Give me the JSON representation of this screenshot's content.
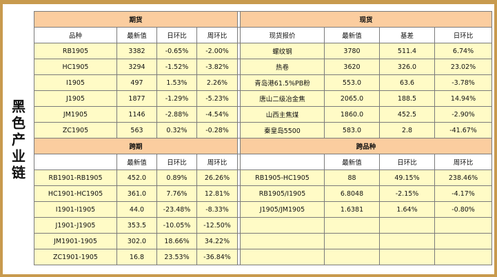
{
  "side_title": "黑色产业链",
  "futures": {
    "title": "期货",
    "headers": [
      "品种",
      "最新值",
      "日环比",
      "周环比"
    ],
    "rows": [
      [
        "RB1905",
        "3382",
        "-0.65%",
        "-2.00%"
      ],
      [
        "HC1905",
        "3294",
        "-1.52%",
        "-3.82%"
      ],
      [
        "I1905",
        "497",
        "1.53%",
        "2.26%"
      ],
      [
        "J1905",
        "1877",
        "-1.29%",
        "-5.23%"
      ],
      [
        "JM1905",
        "1146",
        "-2.88%",
        "-4.54%"
      ],
      [
        "ZC1905",
        "563",
        "0.32%",
        "-0.28%"
      ]
    ]
  },
  "spot": {
    "title": "现货",
    "headers": [
      "现货报价",
      "最新值",
      "基差",
      "日环比"
    ],
    "rows": [
      [
        "螺纹钢",
        "3780",
        "511.4",
        "6.74%"
      ],
      [
        "热卷",
        "3620",
        "326.0",
        "23.02%"
      ],
      [
        "青岛港61.5%PB粉",
        "553.0",
        "63.6",
        "-3.78%"
      ],
      [
        "唐山二级冶金焦",
        "2065.0",
        "188.5",
        "14.94%"
      ],
      [
        "山西主焦煤",
        "1860.0",
        "452.5",
        "-2.90%"
      ],
      [
        "秦皇岛5500",
        "583.0",
        "2.8",
        "-41.67%"
      ]
    ]
  },
  "spread": {
    "title": "跨期",
    "headers": [
      "",
      "最新值",
      "日环比",
      "周环比"
    ],
    "rows": [
      [
        "RB1901-RB1905",
        "452.0",
        "0.89%",
        "26.26%"
      ],
      [
        "HC1901-HC1905",
        "361.0",
        "7.76%",
        "12.81%"
      ],
      [
        "I1901-I1905",
        "44.0",
        "-23.48%",
        "-8.33%"
      ],
      [
        "J1901-J1905",
        "353.5",
        "-10.05%",
        "-12.50%"
      ],
      [
        "JM1901-1905",
        "302.0",
        "18.66%",
        "34.22%"
      ],
      [
        "ZC1901-1905",
        "16.8",
        "23.53%",
        "-36.84%"
      ]
    ]
  },
  "cross": {
    "title": "跨品种",
    "headers": [
      "",
      "最新值",
      "日环比",
      "周环比"
    ],
    "rows": [
      [
        "RB1905-HC1905",
        "88",
        "49.15%",
        "238.46%"
      ],
      [
        "RB1905/I1905",
        "6.8048",
        "-2.15%",
        "-4.17%"
      ],
      [
        "J1905/JM1905",
        "1.6381",
        "1.64%",
        "-0.80%"
      ],
      [
        "",
        "",
        "",
        ""
      ],
      [
        "",
        "",
        "",
        ""
      ],
      [
        "",
        "",
        "",
        ""
      ]
    ]
  },
  "colors": {
    "up": "#e8160c",
    "down": "#2d8f2d",
    "header": "#fbcd9f",
    "row": "#fffbc6",
    "frame": "#c89a4e"
  }
}
